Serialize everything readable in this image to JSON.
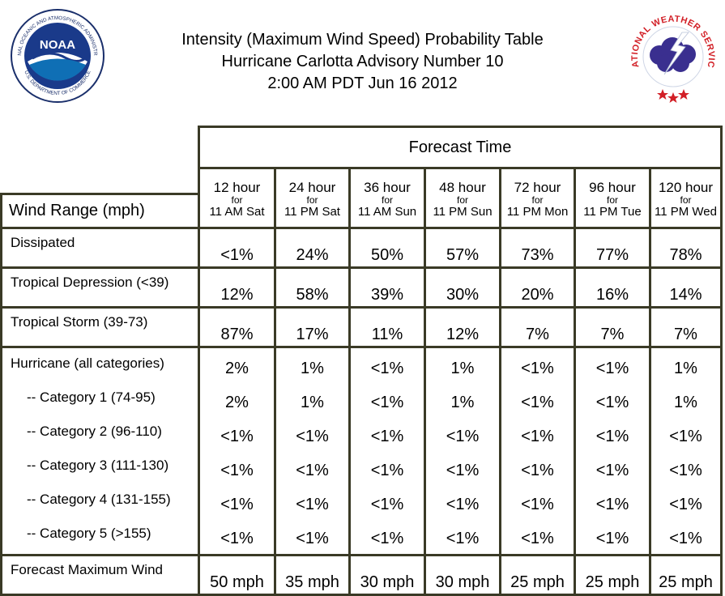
{
  "header": {
    "title_line1": "Intensity (Maximum Wind Speed) Probability Table",
    "title_line2": "Hurricane Carlotta Advisory Number 10",
    "title_line3": "2:00 AM PDT Jun 16 2012"
  },
  "logos": {
    "noaa": {
      "icon": "noaa-logo",
      "text": "NOAA",
      "ring_top": "NATIONAL OCEANIC AND ATMOSPHERIC ADMINISTRATION",
      "ring_bottom": "U.S. DEPARTMENT OF COMMERCE"
    },
    "nws": {
      "icon": "nws-logo",
      "ring_text": "NATIONAL WEATHER SERVICE"
    }
  },
  "table": {
    "forecast_time_label": "Forecast Time",
    "wind_range_label": "Wind Range (mph)",
    "columns": [
      {
        "hour": "12 hour",
        "for": "for",
        "time": "11 AM Sat"
      },
      {
        "hour": "24 hour",
        "for": "for",
        "time": "11 PM Sat"
      },
      {
        "hour": "36 hour",
        "for": "for",
        "time": "11 AM Sun"
      },
      {
        "hour": "48 hour",
        "for": "for",
        "time": "11 PM Sun"
      },
      {
        "hour": "72 hour",
        "for": "for",
        "time": "11 PM Mon"
      },
      {
        "hour": "96 hour",
        "for": "for",
        "time": "11 PM Tue"
      },
      {
        "hour": "120 hour",
        "for": "for",
        "time": "11 PM Wed"
      }
    ],
    "rows": {
      "dissipated": {
        "label": "Dissipated",
        "values": [
          "<1%",
          "24%",
          "50%",
          "57%",
          "73%",
          "77%",
          "78%"
        ]
      },
      "tropical_depression": {
        "label": "Tropical Depression (<39)",
        "values": [
          "12%",
          "58%",
          "39%",
          "30%",
          "20%",
          "16%",
          "14%"
        ]
      },
      "tropical_storm": {
        "label": "Tropical Storm (39-73)",
        "values": [
          "87%",
          "17%",
          "11%",
          "12%",
          "7%",
          "7%",
          "7%"
        ]
      },
      "hurricane": {
        "label": "Hurricane (all categories)",
        "values": [
          "2%",
          "1%",
          "<1%",
          "1%",
          "<1%",
          "<1%",
          "1%"
        ],
        "categories": [
          {
            "label": "-- Category 1 (74-95)",
            "values": [
              "2%",
              "1%",
              "<1%",
              "1%",
              "<1%",
              "<1%",
              "1%"
            ]
          },
          {
            "label": "-- Category 2 (96-110)",
            "values": [
              "<1%",
              "<1%",
              "<1%",
              "<1%",
              "<1%",
              "<1%",
              "<1%"
            ]
          },
          {
            "label": "-- Category 3 (111-130)",
            "values": [
              "<1%",
              "<1%",
              "<1%",
              "<1%",
              "<1%",
              "<1%",
              "<1%"
            ]
          },
          {
            "label": "-- Category 4 (131-155)",
            "values": [
              "<1%",
              "<1%",
              "<1%",
              "<1%",
              "<1%",
              "<1%",
              "<1%"
            ]
          },
          {
            "label": "-- Category 5 (>155)",
            "values": [
              "<1%",
              "<1%",
              "<1%",
              "<1%",
              "<1%",
              "<1%",
              "<1%"
            ]
          }
        ]
      },
      "forecast_max_wind": {
        "label": "Forecast Maximum Wind",
        "values": [
          "50 mph",
          "35 mph",
          "30 mph",
          "30 mph",
          "25 mph",
          "25 mph",
          "25 mph"
        ]
      }
    }
  }
}
